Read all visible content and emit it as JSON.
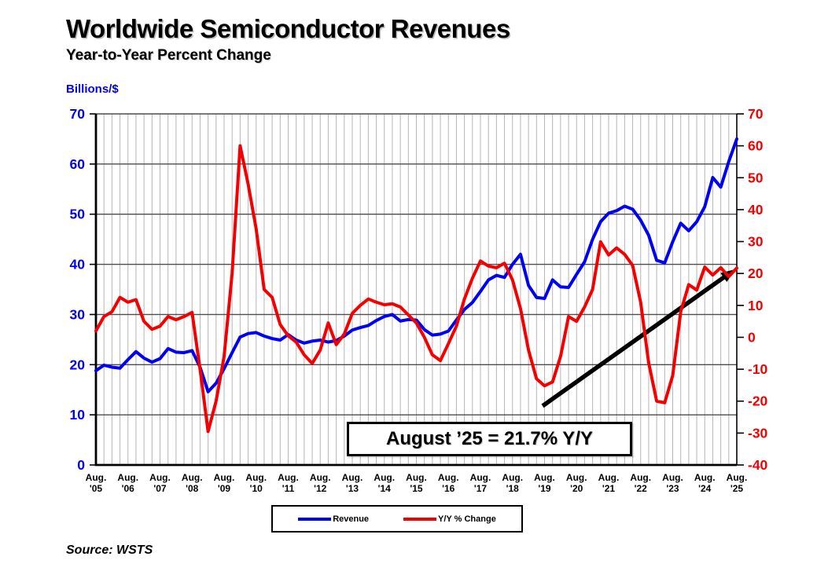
{
  "header": {
    "title": "Worldwide Semiconductor Revenues",
    "subtitle": "Year-to-Year Percent Change"
  },
  "source_note": "Source: WSTS",
  "chart_data": {
    "type": "line",
    "title": "Worldwide Semiconductor Revenues",
    "subtitle": "Year-to-Year Percent Change",
    "x_start": "Aug 2005",
    "x_end": "Aug 2025",
    "points_per_year": 4,
    "grid": {
      "vertical_color": "#b5b5b5",
      "horizontal_color": "#4d4d4d",
      "grid_on": true
    },
    "legend_position": "bottom-center",
    "annotation": "August ’25 = 21.7% Y/Y",
    "x_axis": {
      "tick_month": "Aug.",
      "tick_years": [
        "'05",
        "'06",
        "'07",
        "'08",
        "'09",
        "'10",
        "'11",
        "'12",
        "'13",
        "'14",
        "'15",
        "'16",
        "'17",
        "'18",
        "'19",
        "'20",
        "'21",
        "'22",
        "'23",
        "'24",
        "'25"
      ]
    },
    "left_axis": {
      "unit_label": "Billions/$",
      "min": 0,
      "max": 70,
      "ticks": [
        0,
        10,
        20,
        30,
        40,
        50,
        60,
        70
      ],
      "color": "#0000f2"
    },
    "right_axis": {
      "min": -40,
      "max": 70,
      "ticks": [
        -40,
        -30,
        -20,
        -10,
        0,
        10,
        20,
        30,
        40,
        50,
        60,
        70
      ],
      "color": "#f40000"
    },
    "series": [
      {
        "name": "Revenue",
        "id": "revenue-line",
        "axis": "left",
        "color": "#0000f2",
        "values": [
          18.8,
          19.9,
          19.5,
          19.3,
          21.0,
          22.6,
          21.3,
          20.5,
          21.2,
          23.2,
          22.5,
          22.4,
          22.8,
          19.5,
          14.6,
          16.3,
          19.2,
          22.4,
          25.5,
          26.2,
          26.4,
          25.7,
          25.2,
          24.9,
          26.0,
          24.9,
          24.3,
          24.7,
          24.9,
          24.5,
          24.8,
          25.7,
          26.9,
          27.4,
          27.8,
          28.8,
          29.6,
          30.0,
          28.7,
          29.0,
          28.9,
          27.0,
          25.9,
          26.1,
          26.7,
          28.9,
          31.0,
          32.4,
          34.6,
          36.9,
          37.8,
          37.4,
          40.0,
          42.0,
          35.8,
          33.4,
          33.2,
          36.9,
          35.5,
          35.4,
          38.0,
          40.5,
          45.0,
          48.5,
          50.2,
          50.7,
          51.6,
          51.0,
          48.8,
          45.8,
          40.8,
          40.3,
          44.5,
          48.2,
          46.7,
          48.5,
          51.5,
          57.3,
          55.4,
          60.5,
          65.0
        ]
      },
      {
        "name": "Y/Y % Change",
        "id": "yy-percent-change-line",
        "axis": "right",
        "color": "#f40000",
        "values": [
          2.0,
          6.5,
          8.0,
          12.5,
          11.0,
          11.8,
          5.0,
          2.5,
          3.5,
          6.5,
          5.5,
          6.5,
          7.8,
          -10.0,
          -29.5,
          -20.0,
          -6.0,
          20.0,
          60.0,
          48.0,
          34.0,
          15.0,
          12.5,
          4.0,
          0.5,
          -1.5,
          -5.5,
          -8.2,
          -4.0,
          4.5,
          -2.3,
          1.0,
          7.5,
          10.0,
          12.0,
          11.0,
          10.2,
          10.5,
          9.5,
          7.0,
          4.5,
          0.0,
          -5.5,
          -7.3,
          -2.0,
          3.5,
          12.0,
          18.5,
          23.9,
          22.3,
          21.8,
          23.2,
          18.0,
          9.0,
          -4.0,
          -13.0,
          -15.2,
          -14.0,
          -6.0,
          6.5,
          5.0,
          9.5,
          15.0,
          29.9,
          25.8,
          28.0,
          26.0,
          22.5,
          11.0,
          -8.0,
          -20.0,
          -20.5,
          -12.0,
          8.0,
          16.5,
          14.8,
          22.0,
          19.5,
          21.8,
          19.0,
          21.7
        ]
      }
    ],
    "trend_arrow": {
      "color": "#000000",
      "from": {
        "x_year_index": 13.94,
        "y_right_pct": -21.5
      },
      "to": {
        "x_year_index": 19.95,
        "y_right_pct": 21.3
      }
    }
  }
}
